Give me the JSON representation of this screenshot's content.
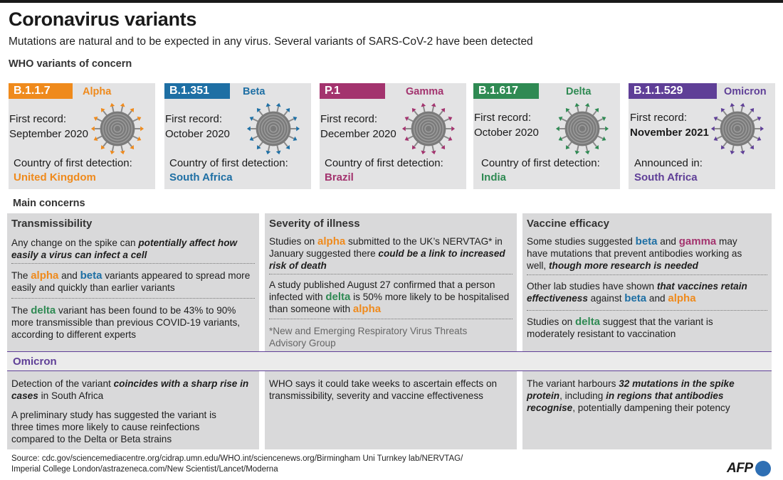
{
  "title": "Coronavirus variants",
  "subtitle": "Mutations are natural and to be expected in any virus. Several variants of SARS-CoV-2 have been detected",
  "who_label": "WHO variants of concern",
  "variants": [
    {
      "code": "B.1.1.7",
      "name": "Alpha",
      "color": "#ef8a1c",
      "first_record_label": "First record:",
      "first_record": "September 2020",
      "country_label": "Country of first detection:",
      "country": "United Kingdom"
    },
    {
      "code": "B.1.351",
      "name": "Beta",
      "color": "#1e6fa4",
      "first_record_label": "First record:",
      "first_record": "October 2020",
      "country_label": "Country of first detection:",
      "country": "South Africa"
    },
    {
      "code": "P.1",
      "name": "Gamma",
      "color": "#a3336e",
      "first_record_label": "First record:",
      "first_record": "December 2020",
      "country_label": "Country of first detection:",
      "country": "Brazil"
    },
    {
      "code": "B.1.617",
      "name": "Delta",
      "color": "#2f8a53",
      "first_record_label": "First record:",
      "first_record": "October 2020",
      "country_label": "Country of first detection:",
      "country": "India"
    },
    {
      "code": "B.1.1.529",
      "name": "Omicron",
      "color": "#5f3f97",
      "first_record_label": "First record:",
      "first_record": "November 2021",
      "country_label": "Announced in:",
      "country": "South Africa"
    }
  ],
  "main_concerns_label": "Main concerns",
  "concerns": {
    "transmissibility": {
      "heading": "Transmissibility",
      "p1": [
        "Any change on the spike can ",
        "potentially affect how easily a virus can infect a cell"
      ],
      "p2": [
        "The ",
        "alpha",
        " and ",
        "beta",
        " variants appeared to spread more easily and quickly than earlier variants"
      ],
      "p3": [
        "The ",
        "delta",
        " variant has been found to be 43% to 90% more transmissible than previous COVID-19 variants, according to different experts"
      ]
    },
    "severity": {
      "heading": "Severity of illness",
      "p1": [
        "Studies on ",
        "alpha",
        " submitted to the UK’s NERVTAG* in January suggested there ",
        "could be a link to increased risk of death"
      ],
      "p2": [
        "A study published August 27 confirmed that a person infected with ",
        "delta",
        " is 50% more likely to be hospitalised than someone with ",
        "alpha"
      ],
      "footnote": "*New and Emerging Respiratory Virus Threats Advisory Group"
    },
    "vaccine": {
      "heading": "Vaccine efficacy",
      "p1": [
        "Some studies suggested ",
        "beta",
        " and ",
        "gamma",
        " may have mutations that prevent antibodies working as well, ",
        "though more research is needed"
      ],
      "p2": [
        "Other lab studies have shown ",
        "that vaccines retain effectiveness",
        " against ",
        "beta",
        " and ",
        "alpha"
      ],
      "p3": [
        "Studies on ",
        "delta",
        " suggest that the variant is moderately resistant to vaccination"
      ]
    }
  },
  "omicron": {
    "heading": "Omicron",
    "col1_p1": [
      "Detection of the variant ",
      "coincides with a sharp rise in cases",
      " in South Africa"
    ],
    "col1_p2": "A preliminary study has suggested the variant is three times more likely to cause reinfections compared to the Delta or Beta strains",
    "col2_p1": "WHO says it could take weeks to ascertain effects on transmissibility, severity and vaccine effectiveness",
    "col3_p1": [
      "The variant harbours ",
      "32 mutations in the spike protein",
      ", including ",
      "in regions that antibodies recognise",
      ", potentially dampening their potency"
    ]
  },
  "source": {
    "line1": "Source: cdc.gov/sciencemediacentre.org/cidrap.umn.edu/WHO.int/sciencenews.org/Birmingham Uni Turnkey lab/NERVTAG/",
    "line2": "Imperial College London/astrazeneca.com/New Scientist/Lancet/Moderna"
  },
  "logo": "AFP",
  "icons": {
    "virus": "coronavirus-icon"
  }
}
